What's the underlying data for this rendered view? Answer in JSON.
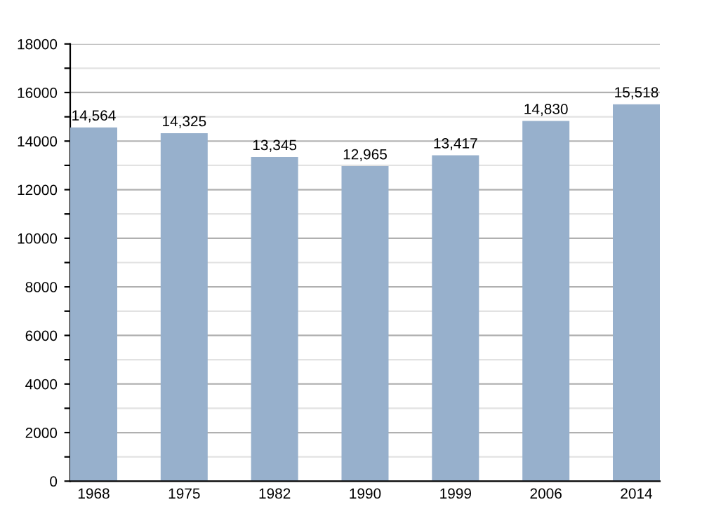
{
  "chart_data": {
    "type": "bar",
    "categories": [
      "1968",
      "1975",
      "1982",
      "1990",
      "1999",
      "2006",
      "2014"
    ],
    "values": [
      14564,
      14325,
      13345,
      12965,
      13417,
      14830,
      15518
    ],
    "value_labels": [
      "14,564",
      "14,325",
      "13,345",
      "12,965",
      "13,417",
      "14,830",
      "15,518"
    ],
    "color": "#97b0cc",
    "ylim": [
      0,
      18000
    ],
    "yticks": [
      0,
      {
        "value": 1000,
        "label": null
      },
      2000,
      {
        "value": 3000,
        "label": null
      },
      4000,
      {
        "value": 5000,
        "label": null
      },
      6000,
      {
        "value": 7000,
        "label": null
      },
      8000,
      {
        "value": 9000,
        "label": null
      },
      10000,
      {
        "value": 11000,
        "label": null
      },
      12000,
      {
        "value": 13000,
        "label": null
      },
      14000,
      {
        "value": 15000,
        "label": null
      },
      16000,
      {
        "value": 17000,
        "label": null
      },
      18000
    ],
    "grid": "y"
  }
}
